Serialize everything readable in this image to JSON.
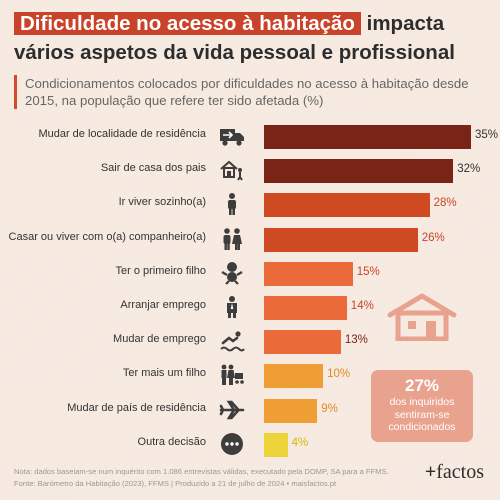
{
  "title": {
    "highlight": "Dificuldade no acesso à habitação",
    "rest": " impacta vários aspetos da vida pessoal e profissional"
  },
  "subtitle": "Condicionamentos colocados por dificuldades no acesso à habitação desde 2015, na população que refere ter sido afetada (%)",
  "chart_data": {
    "type": "bar",
    "orientation": "horizontal",
    "categories": [
      "Mudar de localidade de residência",
      "Sair de casa dos pais",
      "Ir viver sozinho(a)",
      "Casar ou viver com o(a) companheiro(a)",
      "Ter o primeiro filho",
      "Arranjar emprego",
      "Mudar de emprego",
      "Ter mais um filho",
      "Mudar de país de residência",
      "Outra decisão"
    ],
    "values": [
      35,
      32,
      28,
      26,
      15,
      14,
      13,
      10,
      9,
      4
    ],
    "value_labels": [
      "35%",
      "32%",
      "28%",
      "26%",
      "15%",
      "14%",
      "13%",
      "10%",
      "9%",
      "4%"
    ],
    "colors": [
      "#7a2418",
      "#7a2418",
      "#cf4a23",
      "#cf4a23",
      "#ea6a3a",
      "#ea6a3a",
      "#ea6a3a",
      "#ee9e35",
      "#ee9e35",
      "#ecd33a"
    ],
    "label_colors": [
      "#333333",
      "#333333",
      "#c9432a",
      "#c9432a",
      "#c9432a",
      "#c9432a",
      "#7a2418",
      "#e08a24",
      "#e08a24",
      "#d6b800"
    ],
    "icons": [
      "moving-truck-icon",
      "leaving-home-icon",
      "single-person-icon",
      "couple-icon",
      "baby-icon",
      "businessman-icon",
      "swimmer-icon",
      "family-icon",
      "airplane-icon",
      "more-options-icon"
    ],
    "xlim": [
      0,
      35
    ],
    "grid": false,
    "legend": "none"
  },
  "callout": {
    "value": "27%",
    "text_lines": [
      "dos inquiridos",
      "sentiram-se",
      "condicionados"
    ]
  },
  "footer": {
    "note": "Nota: dados baseiam-se num inquérito com 1.086 entrevistas válidas, executado pela DOMP, SA para a FFMS.",
    "source": "Fonte: Barómetro da Habitação (2023), FFMS | Produzido a 21 de julho de 2024 • maisfactos.pt"
  },
  "logo": {
    "plus": "+",
    "word": "factos"
  },
  "decor": {
    "house_icon": "house-icon",
    "house_color": "#e9a28e"
  }
}
